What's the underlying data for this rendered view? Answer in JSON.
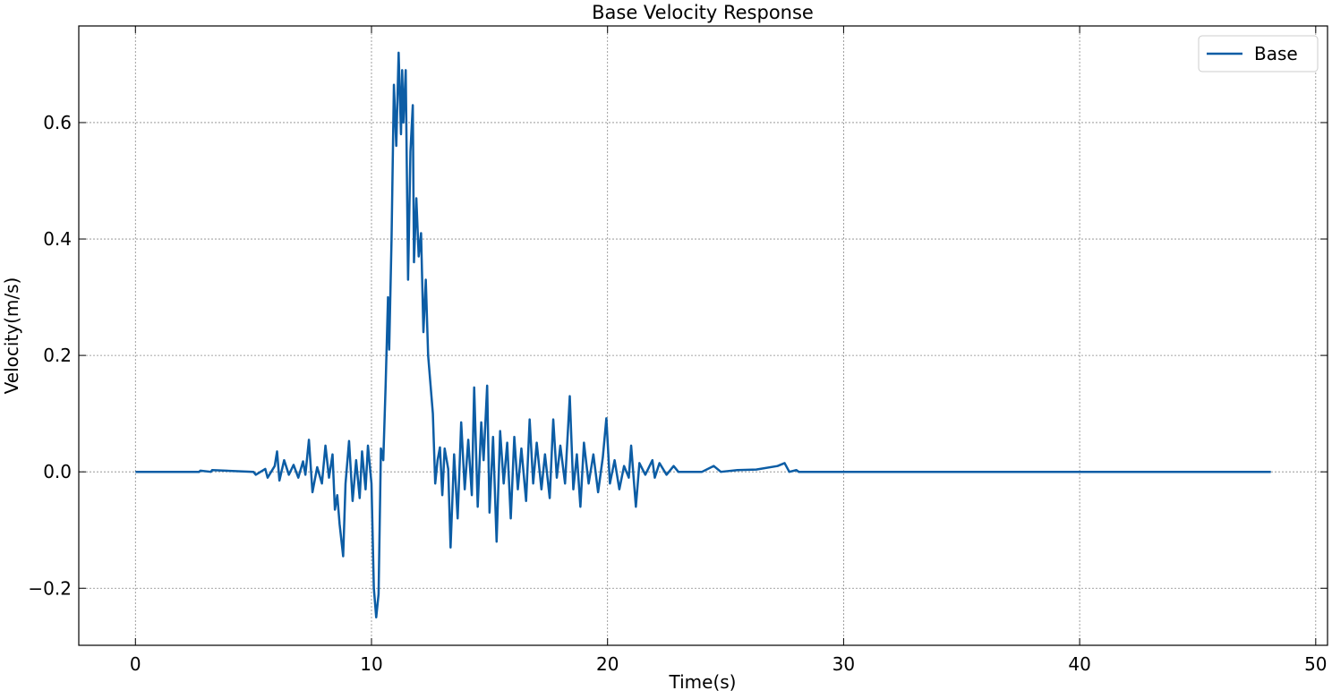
{
  "chart_data": {
    "type": "line",
    "title": "Base Velocity Response",
    "x_label": "Time(s)",
    "y_label": "Velocity(m/s)",
    "xlim": [
      -2.4,
      50.5
    ],
    "ylim": [
      -0.298,
      0.766
    ],
    "xticks": [
      0,
      10,
      20,
      30,
      40,
      50
    ],
    "yticks": [
      {
        "value": -0.2,
        "label": "−0.2"
      },
      {
        "value": 0,
        "label": "0.0"
      },
      0.2,
      0.4,
      0.6
    ],
    "grid": true,
    "legend": "upper right",
    "x": [
      0,
      2.7,
      2.75,
      3.2,
      3.25,
      5.0,
      5.1,
      5.5,
      5.6,
      5.9,
      6.0,
      6.1,
      6.3,
      6.5,
      6.7,
      6.9,
      7.1,
      7.2,
      7.35,
      7.5,
      7.7,
      7.9,
      8.05,
      8.2,
      8.35,
      8.45,
      8.55,
      8.65,
      8.8,
      8.9,
      9.05,
      9.2,
      9.35,
      9.5,
      9.6,
      9.75,
      9.85,
      10.0,
      10.1,
      10.2,
      10.3,
      10.4,
      10.5,
      10.6,
      10.7,
      10.75,
      10.85,
      10.95,
      11.05,
      11.15,
      11.25,
      11.3,
      11.35,
      11.45,
      11.55,
      11.65,
      11.75,
      11.8,
      11.9,
      12.0,
      12.1,
      12.2,
      12.3,
      12.4,
      12.5,
      12.6,
      12.7,
      12.8,
      12.9,
      13.0,
      13.1,
      13.25,
      13.35,
      13.5,
      13.65,
      13.8,
      13.95,
      14.1,
      14.25,
      14.35,
      14.5,
      14.65,
      14.75,
      14.9,
      15.0,
      15.15,
      15.3,
      15.45,
      15.6,
      15.75,
      15.9,
      16.05,
      16.2,
      16.35,
      16.55,
      16.7,
      16.85,
      17.0,
      17.2,
      17.35,
      17.55,
      17.7,
      17.85,
      18.0,
      18.2,
      18.4,
      18.55,
      18.7,
      18.85,
      19.0,
      19.2,
      19.4,
      19.6,
      19.8,
      19.95,
      20.1,
      20.3,
      20.5,
      20.7,
      20.9,
      21.0,
      21.2,
      21.35,
      21.6,
      21.9,
      22.0,
      22.2,
      22.5,
      22.8,
      23.0,
      24.0,
      24.5,
      24.8,
      25.5,
      26.3,
      27.2,
      27.5,
      27.7,
      28.0,
      28.1,
      48.1
    ],
    "series": [
      {
        "name": "Base",
        "color": "#0c5da5",
        "values": [
          0,
          0,
          0.002,
          0,
          0.003,
          0,
          -0.005,
          0.005,
          -0.01,
          0.01,
          0.035,
          -0.015,
          0.02,
          -0.005,
          0.012,
          -0.01,
          0.018,
          -0.005,
          0.055,
          -0.035,
          0.008,
          -0.02,
          0.045,
          -0.01,
          0.03,
          -0.065,
          -0.04,
          -0.09,
          -0.145,
          -0.02,
          0.053,
          -0.05,
          0.02,
          -0.045,
          0.035,
          -0.03,
          0.045,
          -0.02,
          -0.2,
          -0.25,
          -0.21,
          0.04,
          0.02,
          0.15,
          0.3,
          0.21,
          0.4,
          0.665,
          0.56,
          0.72,
          0.58,
          0.69,
          0.6,
          0.69,
          0.33,
          0.55,
          0.63,
          0.36,
          0.47,
          0.37,
          0.41,
          0.24,
          0.33,
          0.2,
          0.15,
          0.1,
          -0.02,
          0.02,
          0.042,
          -0.04,
          0.04,
          0.005,
          -0.13,
          0.03,
          -0.08,
          0.085,
          -0.03,
          0.055,
          -0.04,
          0.145,
          -0.06,
          0.085,
          0.02,
          0.148,
          -0.07,
          0.06,
          -0.12,
          0.07,
          -0.02,
          0.05,
          -0.08,
          0.06,
          -0.03,
          0.04,
          -0.05,
          0.09,
          -0.02,
          0.05,
          -0.03,
          0.03,
          -0.045,
          0.09,
          -0.01,
          0.045,
          -0.02,
          0.13,
          -0.03,
          0.03,
          -0.06,
          0.05,
          -0.02,
          0.03,
          -0.035,
          0.025,
          0.092,
          -0.02,
          0.02,
          -0.03,
          0.01,
          -0.01,
          0.045,
          -0.06,
          0.015,
          -0.005,
          0.02,
          -0.01,
          0.015,
          -0.005,
          0.01,
          0,
          0,
          0.01,
          0,
          0.003,
          0.004,
          0.01,
          0.015,
          0,
          0.003,
          0,
          0
        ]
      }
    ]
  }
}
